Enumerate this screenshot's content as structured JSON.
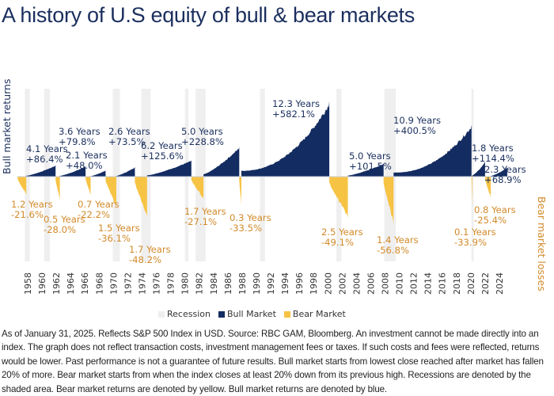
{
  "title": "A history of U.S equity of bull & bear markets",
  "footnote": "As of January 31, 2025. Reflects S&P 500 Index in USD. Source: RBC GAM, Bloomberg. An investment cannot be made directly into an index. The graph does not reflect transaction costs, investment management fees or taxes. If such costs and fees were reflected, returns would be lower. Past performance is not a guarantee of future results. Bull market starts from lowest close reached after market has fallen 20% of more. Bear market starts from when the index closes at least 20% down from its previous high. Recessions are denoted by the shaded area. Bear market returns are denoted by yellow. Bull market returns are denoted by blue.",
  "colors": {
    "bull": "#132c61",
    "bear": "#f6c344",
    "recession": "#efefef",
    "bull_text": "#1b2f5e",
    "bear_text": "#d28a2a"
  },
  "legend": {
    "recession": "Recession",
    "bull": "Bull Market",
    "bear": "Bear Market"
  },
  "chart_data": {
    "type": "area",
    "title": "A history of U.S equity of bull & bear markets",
    "ylabel_left": "Bull market returns",
    "ylabel_right": "Bear market losses",
    "xlabel": "",
    "x_ticks": [
      "1958",
      "1960",
      "1962",
      "1964",
      "1966",
      "1968",
      "1970",
      "1972",
      "1974",
      "1976",
      "1978",
      "1980",
      "1982",
      "1984",
      "1986",
      "1988",
      "1990",
      "1992",
      "1994",
      "1996",
      "1998",
      "2000",
      "2002",
      "2004",
      "2006",
      "2008",
      "2010",
      "2012",
      "2014",
      "2016",
      "2018",
      "2020",
      "2022",
      "2024"
    ],
    "x_range": [
      1956.5,
      2025.2
    ],
    "grid": false,
    "legend_position": "bottom",
    "series": [
      {
        "name": "Bull Market",
        "periods": [
          {
            "start": 1957.8,
            "end": 1961.9,
            "years": "4.1 Years",
            "return": "+86.4%",
            "value": 86.4
          },
          {
            "start": 1962.5,
            "end": 1966.1,
            "years": "3.6 Years",
            "return": "+79.8%",
            "value": 79.8
          },
          {
            "start": 1966.8,
            "end": 1968.9,
            "years": "2.1 Years",
            "return": "+48.0%",
            "value": 48.0
          },
          {
            "start": 1970.4,
            "end": 1973.0,
            "years": "2.6 Years",
            "return": "+73.5%",
            "value": 73.5
          },
          {
            "start": 1974.7,
            "end": 1980.9,
            "years": "6.2 Years",
            "return": "+125.6%",
            "value": 125.6
          },
          {
            "start": 1982.6,
            "end": 1987.6,
            "years": "5.0 Years",
            "return": "+228.8%",
            "value": 228.8
          },
          {
            "start": 1987.9,
            "end": 2000.2,
            "years": "12.3 Years",
            "return": "+582.1%",
            "value": 582.1
          },
          {
            "start": 2002.8,
            "end": 2007.8,
            "years": "5.0 Years",
            "return": "+101.5%",
            "value": 101.5
          },
          {
            "start": 2009.2,
            "end": 2020.1,
            "years": "10.9 Years",
            "return": "+400.5%",
            "value": 400.5
          },
          {
            "start": 2020.2,
            "end": 2022.0,
            "years": "1.8 Years",
            "return": "+114.4%",
            "value": 114.4
          },
          {
            "start": 2022.8,
            "end": 2025.1,
            "years": "2.3 Years",
            "return": "+68.9%",
            "value": 68.9
          }
        ]
      },
      {
        "name": "Bear Market",
        "periods": [
          {
            "start": 1956.6,
            "end": 1957.8,
            "years": "1.2 Years",
            "return": "-21.6%",
            "value": -21.6
          },
          {
            "start": 1961.9,
            "end": 1962.5,
            "years": "0.5 Years",
            "return": "-28.0%",
            "value": -28.0
          },
          {
            "start": 1966.1,
            "end": 1966.8,
            "years": "0.7 Years",
            "return": "-22.2%",
            "value": -22.2
          },
          {
            "start": 1968.9,
            "end": 1970.4,
            "years": "1.5 Years",
            "return": "-36.1%",
            "value": -36.1
          },
          {
            "start": 1973.0,
            "end": 1974.7,
            "years": "1.7 Years",
            "return": "-48.2%",
            "value": -48.2
          },
          {
            "start": 1980.9,
            "end": 1982.6,
            "years": "1.7 Years",
            "return": "-27.1%",
            "value": -27.1
          },
          {
            "start": 1987.6,
            "end": 1987.9,
            "years": "0.3 Years",
            "return": "-33.5%",
            "value": -33.5
          },
          {
            "start": 2000.2,
            "end": 2002.8,
            "years": "2.5 Years",
            "return": "-49.1%",
            "value": -49.1
          },
          {
            "start": 2007.8,
            "end": 2009.2,
            "years": "1.4 Years",
            "return": "-56.8%",
            "value": -56.8
          },
          {
            "start": 2020.1,
            "end": 2020.2,
            "years": "0.1 Years",
            "return": "-33.9%",
            "value": -33.9
          },
          {
            "start": 2022.0,
            "end": 2022.8,
            "years": "0.8 Years",
            "return": "-25.4%",
            "value": -25.4
          }
        ]
      }
    ],
    "recessions": [
      [
        1957.6,
        1958.3
      ],
      [
        1960.3,
        1961.1
      ],
      [
        1969.9,
        1970.9
      ],
      [
        1973.9,
        1975.2
      ],
      [
        1980.0,
        1980.5
      ],
      [
        1981.5,
        1982.9
      ],
      [
        1990.5,
        1991.2
      ],
      [
        2001.2,
        2001.9
      ],
      [
        2007.9,
        2009.5
      ],
      [
        2020.1,
        2020.4
      ]
    ]
  }
}
